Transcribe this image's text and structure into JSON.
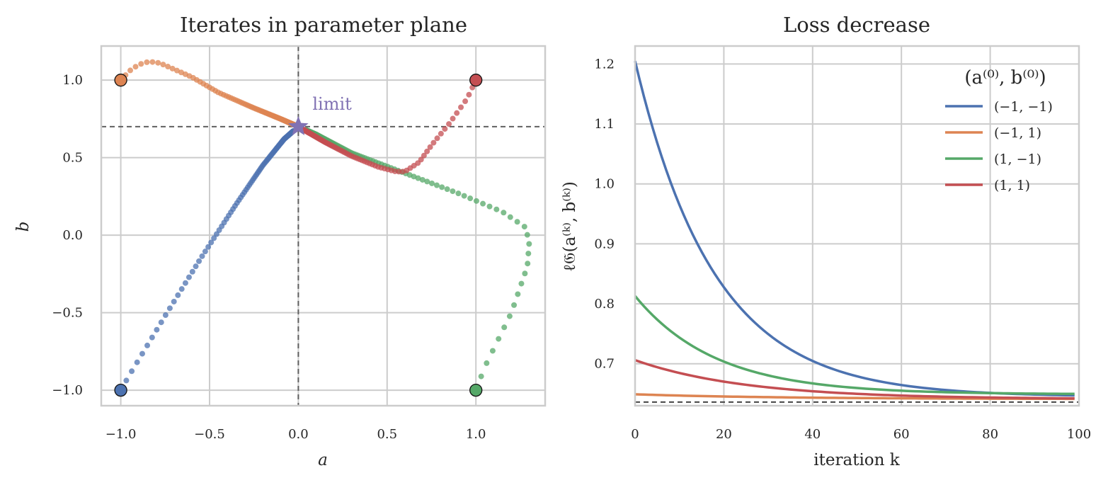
{
  "chart_data": [
    {
      "type": "scatter",
      "title": "Iterates in parameter plane",
      "xlabel": "a",
      "ylabel": "b",
      "xlim": [
        -1.11,
        1.39
      ],
      "ylim": [
        -1.1,
        1.22
      ],
      "xticks": [
        -1.0,
        -0.5,
        0.0,
        0.5,
        1.0
      ],
      "xtick_labels": [
        "−1.0",
        "−0.5",
        "0.0",
        "0.5",
        "1.0"
      ],
      "yticks": [
        -1.0,
        -0.5,
        0.0,
        0.5,
        1.0
      ],
      "ytick_labels": [
        "−1.0",
        "−0.5",
        "0.0",
        "0.5",
        "1.0"
      ],
      "grid": true,
      "limit_point": {
        "a": 0.0,
        "b": 0.7,
        "label": "limit",
        "color": "#8172b3"
      },
      "series": [
        {
          "color": "#4c72b0",
          "anchors": [
            [
              -1.0,
              -1.0
            ],
            [
              -0.95,
              -0.9
            ],
            [
              -0.75,
              -0.52
            ],
            [
              -0.55,
              -0.15
            ],
            [
              -0.35,
              0.2
            ],
            [
              -0.2,
              0.45
            ],
            [
              -0.08,
              0.62
            ],
            [
              0.0,
              0.7
            ]
          ]
        },
        {
          "color": "#dd8452",
          "anchors": [
            [
              -1.0,
              1.0
            ],
            [
              -0.95,
              1.06
            ],
            [
              -0.9,
              1.1
            ],
            [
              -0.84,
              1.12
            ],
            [
              -0.78,
              1.11
            ],
            [
              -0.6,
              1.02
            ],
            [
              -0.45,
              0.92
            ],
            [
              -0.25,
              0.82
            ],
            [
              -0.1,
              0.75
            ],
            [
              0.0,
              0.7
            ]
          ]
        },
        {
          "color": "#55a868",
          "anchors": [
            [
              1.0,
              -1.0
            ],
            [
              1.05,
              -0.85
            ],
            [
              1.2,
              -0.5
            ],
            [
              1.29,
              -0.2
            ],
            [
              1.3,
              -0.05
            ],
            [
              1.28,
              0.05
            ],
            [
              1.15,
              0.15
            ],
            [
              0.9,
              0.27
            ],
            [
              0.6,
              0.4
            ],
            [
              0.3,
              0.53
            ],
            [
              0.1,
              0.65
            ],
            [
              0.0,
              0.7
            ]
          ]
        },
        {
          "color": "#c44e52",
          "anchors": [
            [
              1.0,
              1.0
            ],
            [
              0.95,
              0.88
            ],
            [
              0.85,
              0.72
            ],
            [
              0.75,
              0.58
            ],
            [
              0.68,
              0.47
            ],
            [
              0.6,
              0.41
            ],
            [
              0.55,
              0.41
            ],
            [
              0.45,
              0.44
            ],
            [
              0.3,
              0.51
            ],
            [
              0.15,
              0.6
            ],
            [
              0.0,
              0.7
            ]
          ]
        }
      ],
      "start_points": [
        {
          "a": -1.0,
          "b": -1.0,
          "color": "#4c72b0"
        },
        {
          "a": -1.0,
          "b": 1.0,
          "color": "#dd8452"
        },
        {
          "a": 1.0,
          "b": -1.0,
          "color": "#55a868"
        },
        {
          "a": 1.0,
          "b": 1.0,
          "color": "#c44e52"
        }
      ]
    },
    {
      "type": "line",
      "title": "Loss decrease",
      "xlabel": "iteration k",
      "ylabel": "ℓ𝔊(a⁽ᵏ⁾, b⁽ᵏ⁾)",
      "xlim": [
        0,
        100
      ],
      "ylim": [
        0.63,
        1.23
      ],
      "xticks": [
        0,
        20,
        40,
        60,
        80,
        100
      ],
      "xtick_labels": [
        "0",
        "20",
        "40",
        "60",
        "80",
        "100"
      ],
      "yticks": [
        0.7,
        0.8,
        0.9,
        1.0,
        1.1,
        1.2
      ],
      "ytick_labels": [
        "0.7",
        "0.8",
        "0.9",
        "1.0",
        "1.1",
        "1.2"
      ],
      "grid": true,
      "asymptote": 0.636,
      "legend_title": "(a⁽⁰⁾, b⁽⁰⁾)",
      "legend_position": "top-right",
      "series": [
        {
          "name": "(−1, −1)",
          "color": "#4c72b0",
          "start": 1.205,
          "final": 0.645,
          "rate": 0.056
        },
        {
          "name": "(−1, 1)",
          "color": "#dd8452",
          "start": 0.649,
          "final": 0.641,
          "rate": 0.03
        },
        {
          "name": "(1, −1)",
          "color": "#55a868",
          "start": 0.813,
          "final": 0.649,
          "rate": 0.055
        },
        {
          "name": "(1, 1)",
          "color": "#c44e52",
          "start": 0.706,
          "final": 0.641,
          "rate": 0.04
        }
      ]
    }
  ]
}
